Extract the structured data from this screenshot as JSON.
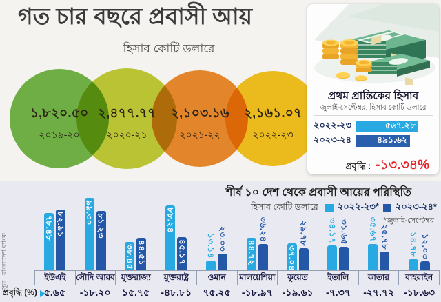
{
  "header": {
    "title": "গত চার বছরে প্রবাসী আয়",
    "subtitle": "হিসাব কোটি ডলারে"
  },
  "colors": {
    "light_blue": "#29a9e1",
    "dark_blue": "#2457a6",
    "red": "#e52528",
    "top_bg": "#f4f3f0",
    "bottom_bg": "#e9e9f1"
  },
  "circles": [
    {
      "value": "১,৮২০.৫০",
      "year": "২০১৯-২০",
      "color": "#74b748"
    },
    {
      "value": "২,৪৭৭.৭৭",
      "year": "২০২০-২১",
      "color": "#c3cd37"
    },
    {
      "value": "২,১০৩.১৬",
      "year": "২০২১-২২",
      "color": "#ee8c2d"
    },
    {
      "value": "২,১৬১.০৭",
      "year": "২০২২-২৩",
      "color": "#f6c51e"
    }
  ],
  "quarter_panel": {
    "title": "প্রথম প্রান্তিকের হিসাব",
    "subtitle": "জুলাই-সেপ্টেম্বর, হিসাব কোটি ডলারে",
    "rows": [
      {
        "year": "২০২২-২৩",
        "label": "৫৬৭.২৮",
        "value": 567.28,
        "color": "#29a9e1"
      },
      {
        "year": "২০২৩-২৪",
        "label": "৪৯১.৬২",
        "value": 491.62,
        "color": "#2a5fae"
      }
    ],
    "growth_label": "প্রবৃদ্ধি :",
    "growth_value": "-১৩.৩৪%"
  },
  "chart_data": {
    "type": "bar",
    "title": "শীর্ষ ১০ দেশ থেকে প্রবাসী আয়ের পরিস্থিতি",
    "unit_label": "হিসাব কোটি ডলারে",
    "footnote": "*জুলাই-সেপ্টেম্বর",
    "source": "সূত্র : বাংলাদেশ ব্যাংক",
    "ylim": [
      0,
      100
    ],
    "legend_position": "top-right",
    "grid": false,
    "categories": [
      "ইউএই",
      "সৌদি আরব",
      "যুক্তরাজ্য",
      "যুক্তরাষ্ট্র",
      "ওমান",
      "মালয়েশিয়া",
      "কুয়েত",
      "ইতালি",
      "কাতার",
      "বাহরাইন"
    ],
    "series": [
      {
        "name": "২০২২-২৩*",
        "color": "#29a9e1",
        "values": [
          78.48,
          99.3,
          38.45,
          88.24,
          13.14,
          44.72,
          37.04,
          34.17,
          35.67,
          14.78
        ],
        "labels_bn": [
          "৭৮.৪৮",
          "৯৯.৩০",
          "৩৮.৪৫",
          "৮৮.২৪",
          "১৩.১৪",
          "৪৪.৭২",
          "৩৭.০৪",
          "৩৪.১৭",
          "৩৫.৬৭",
          "১৪.৭৮"
        ]
      },
      {
        "name": "২০২৩-২৪*",
        "color": "#2457a6",
        "values": [
          82.91,
          81.23,
          44.51,
          45.17,
          23.03,
          36.24,
          29.78,
          31.65,
          25.78,
          12.03
        ],
        "labels_bn": [
          "৮২.৯১",
          "৮১.২৩",
          "৪৪.৫১",
          "৪৫.১৭",
          "২৩.০৩",
          "৩৬.২৪",
          "২৯.৭৮",
          "৩১.৬৫",
          "২৫.৭৮",
          "১২.০৩"
        ]
      }
    ],
    "growth_row": {
      "label": "প্রবৃদ্ধি (%)",
      "values_bn": [
        "৫.৬৫",
        "-১৮.২০",
        "১৫.৭৫",
        "-৪৮.৮১",
        "৭৫.২৫",
        "-১৮.৯৭",
        "-১৯.৬১",
        "-৭.৩৭",
        "-২৭.৭২",
        "-১৮.৬৩"
      ]
    }
  }
}
